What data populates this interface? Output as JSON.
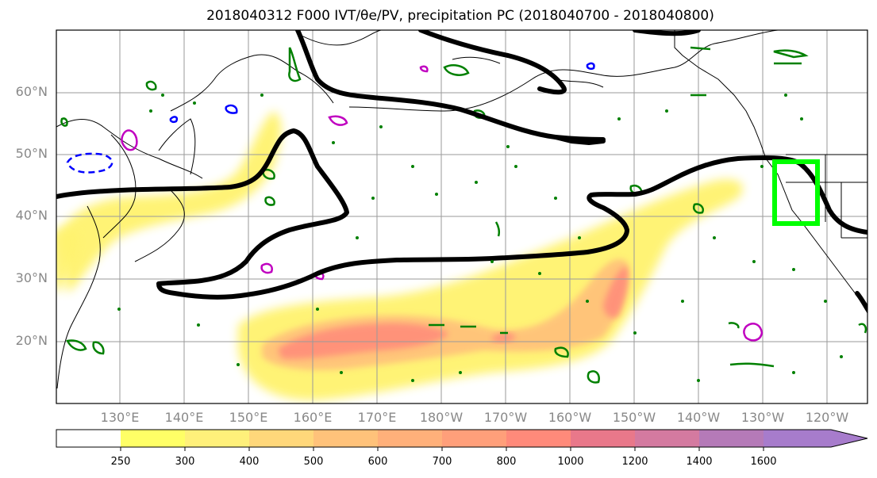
{
  "title": "2018040312 F000 IVT/θe/PV, precipitation PC (2018040700 - 2018040800)",
  "lat_labels": [
    "60°N",
    "50°N",
    "40°N",
    "30°N",
    "20°N"
  ],
  "lon_labels": [
    "130°E",
    "140°E",
    "150°E",
    "160°E",
    "170°E",
    "180°W",
    "170°W",
    "160°W",
    "150°W",
    "140°W",
    "130°W",
    "120°W"
  ],
  "colorbar": {
    "levels": [
      "250",
      "300",
      "400",
      "500",
      "600",
      "700",
      "800",
      "1000",
      "1200",
      "1400",
      "1600"
    ],
    "colors": [
      "#ffffff",
      "#ffff66",
      "#fff07a",
      "#ffd77a",
      "#ffc27a",
      "#ffb07a",
      "#ff9f7a",
      "#ff8a7a",
      "#e9788a",
      "#d47aa0",
      "#b57ab8",
      "#a77ccc"
    ]
  },
  "map_colors": {
    "ivt_contours": "#000000",
    "theta_e_contours": "#008000",
    "pv_positive": "#c000c0",
    "pv_negative": "#0000ff",
    "precip_box": "#00ff00"
  }
}
